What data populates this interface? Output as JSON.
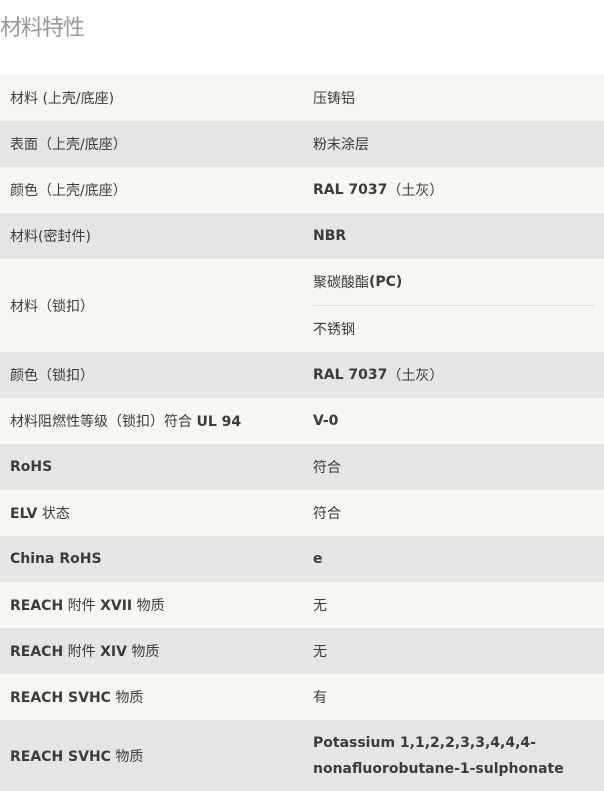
{
  "title": "材料特性",
  "rows": [
    {
      "label": [
        {
          "t": "材料 (上壳/底座)"
        }
      ],
      "values": [
        [
          {
            "t": "压铸铝"
          }
        ]
      ]
    },
    {
      "label": [
        {
          "t": "表面（上壳/底座）"
        }
      ],
      "values": [
        [
          {
            "t": "粉末涂层"
          }
        ]
      ]
    },
    {
      "label": [
        {
          "t": "颜色（上壳/底座）"
        }
      ],
      "values": [
        [
          {
            "t": "RAL 7037",
            "b": true
          },
          {
            "t": "（土灰）"
          }
        ]
      ]
    },
    {
      "label": [
        {
          "t": "材料(密封件)"
        }
      ],
      "values": [
        [
          {
            "t": "NBR",
            "b": true
          }
        ]
      ]
    },
    {
      "label": [
        {
          "t": "材料（锁扣）"
        }
      ],
      "values": [
        [
          {
            "t": "聚碳酸酯 "
          },
          {
            "t": "(PC)",
            "b": true
          }
        ],
        [
          {
            "t": "不锈钢"
          }
        ]
      ]
    },
    {
      "label": [
        {
          "t": "颜色（锁扣）"
        }
      ],
      "values": [
        [
          {
            "t": "RAL 7037",
            "b": true
          },
          {
            "t": "（土灰）"
          }
        ]
      ]
    },
    {
      "label": [
        {
          "t": "材料阻燃性等级（锁扣）符合 "
        },
        {
          "t": "UL 94",
          "b": true
        }
      ],
      "values": [
        [
          {
            "t": "V-0",
            "b": true
          }
        ]
      ]
    },
    {
      "label": [
        {
          "t": "RoHS",
          "b": true
        }
      ],
      "values": [
        [
          {
            "t": "符合"
          }
        ]
      ]
    },
    {
      "label": [
        {
          "t": "ELV",
          "b": true
        },
        {
          "t": " 状态"
        }
      ],
      "values": [
        [
          {
            "t": "符合"
          }
        ]
      ]
    },
    {
      "label": [
        {
          "t": "China RoHS",
          "b": true
        }
      ],
      "values": [
        [
          {
            "t": "e",
            "b": true
          }
        ]
      ]
    },
    {
      "label": [
        {
          "t": "REACH",
          "b": true
        },
        {
          "t": " 附件 "
        },
        {
          "t": "XVII",
          "b": true
        },
        {
          "t": " 物质"
        }
      ],
      "values": [
        [
          {
            "t": "无"
          }
        ]
      ]
    },
    {
      "label": [
        {
          "t": "REACH",
          "b": true
        },
        {
          "t": " 附件 "
        },
        {
          "t": "XIV",
          "b": true
        },
        {
          "t": " 物质"
        }
      ],
      "values": [
        [
          {
            "t": "无"
          }
        ]
      ]
    },
    {
      "label": [
        {
          "t": "REACH SVHC",
          "b": true
        },
        {
          "t": " 物质"
        }
      ],
      "values": [
        [
          {
            "t": "有"
          }
        ]
      ]
    },
    {
      "label": [
        {
          "t": "REACH SVHC",
          "b": true
        },
        {
          "t": " 物质"
        }
      ],
      "values": [
        [
          {
            "t": "Potassium 1,1,2,2,3,3,4,4,4-nonafluorobutane-1-sulphonate",
            "b": true
          }
        ]
      ]
    }
  ]
}
